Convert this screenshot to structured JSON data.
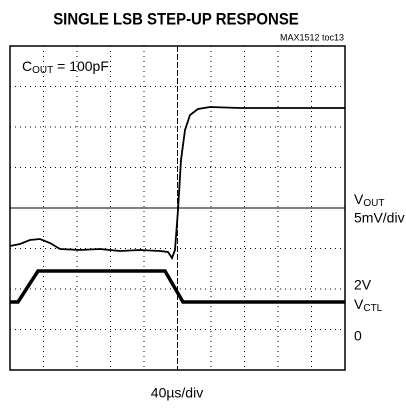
{
  "title": "SINGLE LSB STEP-UP RESPONSE",
  "figure_id": "MAX1512 toc13",
  "annotation": {
    "symbol": "C",
    "subscript": "OUT",
    "text": " = 100pF"
  },
  "channels": [
    {
      "symbol": "V",
      "subscript": "OUT",
      "scale": "5mV/div"
    },
    {
      "scale": "2V",
      "symbol": "V",
      "subscript": "CTL",
      "zero": "0"
    }
  ],
  "time_scale": "40µs/div"
}
